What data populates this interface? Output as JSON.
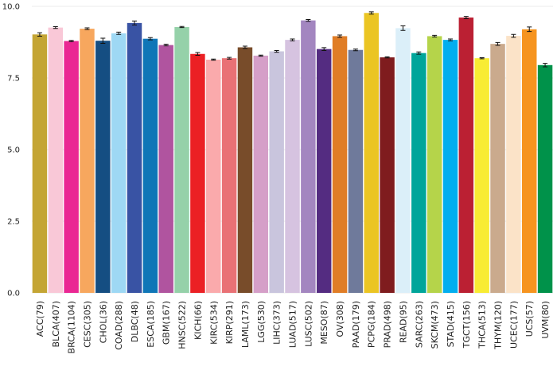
{
  "chart_data": {
    "type": "bar",
    "title": "",
    "xlabel": "",
    "ylabel": "",
    "ylim": [
      0,
      10
    ],
    "yticks": [
      0,
      2.5,
      5,
      7.5,
      10
    ],
    "ytick_labels": [
      "0.0",
      "2.5",
      "5.0",
      "7.5",
      "10.0"
    ],
    "grid": true,
    "legend": "none",
    "categories": [
      "ACC(79)",
      "BLCA(407)",
      "BRCA(1104)",
      "CESC(305)",
      "CHOL(36)",
      "COAD(288)",
      "DLBC(48)",
      "ESCA(185)",
      "GBM(167)",
      "HNSC(522)",
      "KICH(66)",
      "KIRC(534)",
      "KIRP(291)",
      "LAML(173)",
      "LGG(530)",
      "LIHC(373)",
      "LUAD(517)",
      "LUSC(502)",
      "MESO(87)",
      "OV(308)",
      "PAAD(179)",
      "PCPG(184)",
      "PRAD(498)",
      "READ(95)",
      "SARC(263)",
      "SKCM(473)",
      "STAD(415)",
      "TGCT(156)",
      "THCA(513)",
      "THYM(120)",
      "UCEC(177)",
      "UCS(57)",
      "UVM(80)"
    ],
    "values": [
      9.02,
      9.26,
      8.79,
      9.22,
      8.8,
      9.06,
      9.42,
      8.87,
      8.65,
      9.28,
      8.34,
      8.14,
      8.19,
      8.57,
      8.28,
      8.43,
      8.83,
      9.51,
      8.51,
      8.96,
      8.48,
      9.77,
      8.22,
      9.24,
      8.37,
      8.96,
      8.83,
      9.61,
      8.19,
      8.69,
      8.97,
      9.2,
      7.95
    ],
    "errors": [
      0.06,
      0.03,
      0.02,
      0.03,
      0.09,
      0.04,
      0.07,
      0.04,
      0.03,
      0.02,
      0.05,
      0.02,
      0.03,
      0.04,
      0.02,
      0.03,
      0.03,
      0.03,
      0.05,
      0.04,
      0.03,
      0.04,
      0.02,
      0.08,
      0.04,
      0.03,
      0.03,
      0.04,
      0.02,
      0.05,
      0.05,
      0.08,
      0.06
    ],
    "colors": [
      "#C4A534",
      "#F9C8D7",
      "#EA2793",
      "#F7A75E",
      "#154E82",
      "#9ED8F4",
      "#3953A4",
      "#0F76B7",
      "#B0549F",
      "#95D1A9",
      "#EB2024",
      "#FAAAAC",
      "#E97175",
      "#784C2A",
      "#D59FC8",
      "#C9C5DD",
      "#D6C3E0",
      "#A386C0",
      "#542C81",
      "#E07D26",
      "#6F7A9B",
      "#EBC523",
      "#7F1C1E",
      "#DBEFF9",
      "#00A59A",
      "#B5D44A",
      "#02AEEF",
      "#BB2033",
      "#F8EC33",
      "#CAAA8D",
      "#FBE3C8",
      "#F6941F",
      "#00924A"
    ]
  }
}
